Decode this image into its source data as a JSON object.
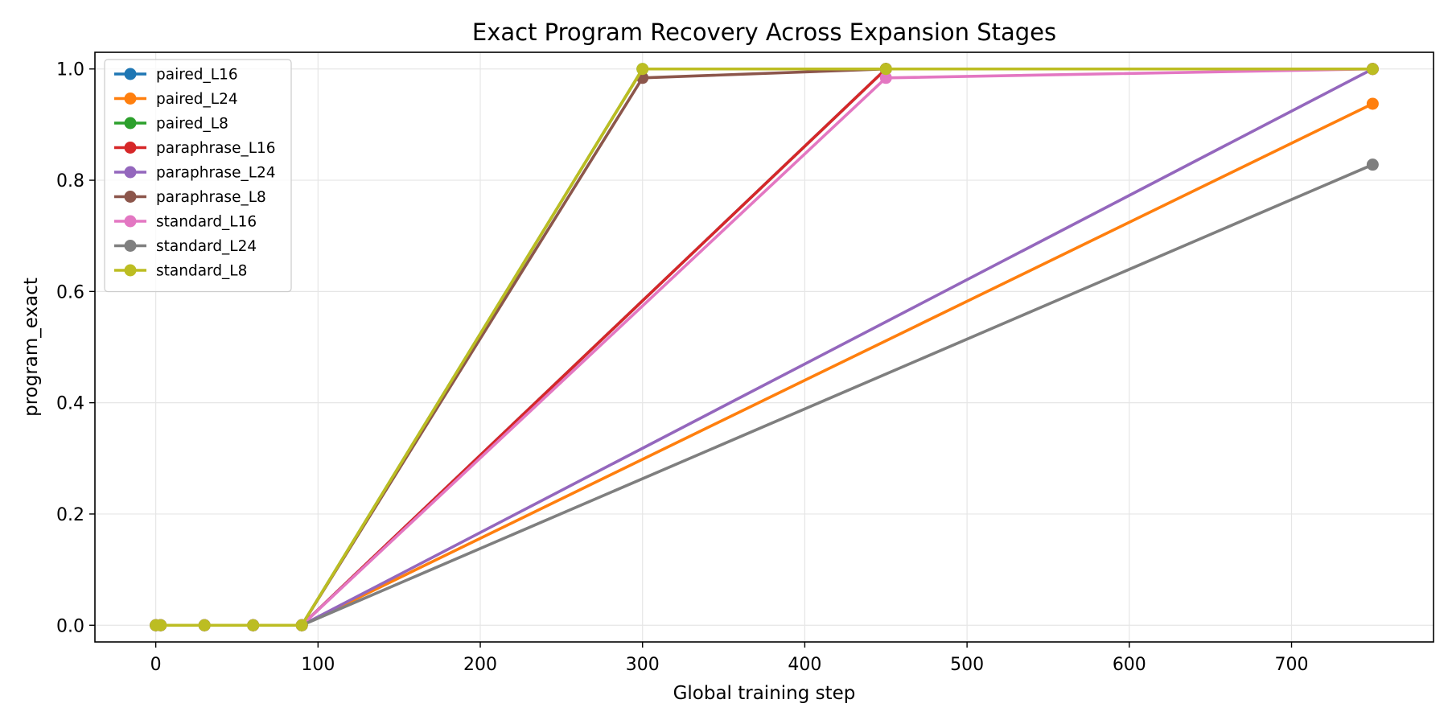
{
  "chart_data": {
    "type": "line",
    "title": "Exact Program Recovery Across Expansion Stages",
    "xlabel": "Global training step",
    "ylabel": "program_exact",
    "xlim": [
      -37.5,
      787.5
    ],
    "ylim": [
      -0.03,
      1.03
    ],
    "xticks": [
      0,
      100,
      200,
      300,
      400,
      500,
      600,
      700
    ],
    "yticks": [
      "0.0",
      "0.2",
      "0.4",
      "0.6",
      "0.8",
      "1.0"
    ],
    "grid": true,
    "legend_position": "upper-left",
    "series": [
      {
        "name": "paired_L16",
        "color": "#1f77b4",
        "x": [
          0,
          3,
          30,
          60,
          90,
          300,
          450,
          750
        ],
        "y": [
          0,
          0,
          0,
          0,
          0,
          null,
          1.0,
          1.0
        ]
      },
      {
        "name": "paired_L24",
        "color": "#ff7f0e",
        "x": [
          0,
          3,
          30,
          60,
          90,
          750
        ],
        "y": [
          0,
          0,
          0,
          0,
          0,
          0.9375
        ]
      },
      {
        "name": "paired_L8",
        "color": "#2ca02c",
        "x": [
          0,
          3,
          30,
          60,
          90,
          300,
          450,
          750
        ],
        "y": [
          0,
          0,
          0,
          0,
          0,
          1.0,
          1.0,
          1.0
        ]
      },
      {
        "name": "paraphrase_L16",
        "color": "#d62728",
        "x": [
          0,
          3,
          30,
          60,
          90,
          450,
          750
        ],
        "y": [
          0,
          0,
          0,
          0,
          0,
          1.0,
          1.0
        ]
      },
      {
        "name": "paraphrase_L24",
        "color": "#9467bd",
        "x": [
          0,
          3,
          30,
          60,
          90,
          750
        ],
        "y": [
          0,
          0,
          0,
          0,
          0,
          1.0
        ]
      },
      {
        "name": "paraphrase_L8",
        "color": "#8c564b",
        "x": [
          0,
          3,
          30,
          60,
          90,
          300,
          450,
          750
        ],
        "y": [
          0,
          0,
          0,
          0,
          0,
          0.984,
          1.0,
          1.0
        ]
      },
      {
        "name": "standard_L16",
        "color": "#e377c2",
        "x": [
          0,
          3,
          30,
          60,
          90,
          450,
          750
        ],
        "y": [
          0,
          0,
          0,
          0,
          0,
          0.984,
          1.0
        ]
      },
      {
        "name": "standard_L24",
        "color": "#7f7f7f",
        "x": [
          0,
          3,
          30,
          60,
          90,
          750
        ],
        "y": [
          0,
          0,
          0,
          0,
          0,
          0.828
        ]
      },
      {
        "name": "standard_L8",
        "color": "#bcbd22",
        "x": [
          0,
          3,
          30,
          60,
          90,
          300,
          450,
          750
        ],
        "y": [
          0,
          0,
          0,
          0,
          0,
          1.0,
          1.0,
          1.0
        ]
      }
    ]
  }
}
